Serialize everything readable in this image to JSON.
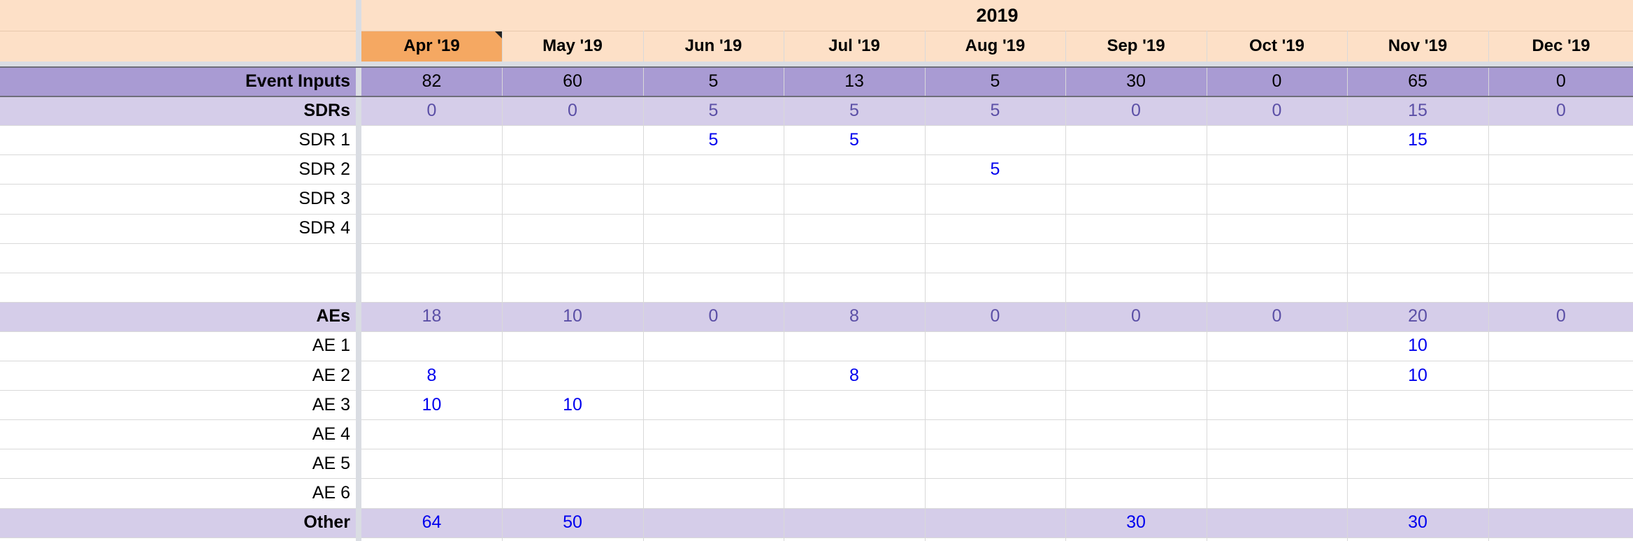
{
  "spreadsheet": {
    "year": "2019",
    "months": [
      "Apr '19",
      "May '19",
      "Jun '19",
      "Jul '19",
      "Aug '19",
      "Sep '19",
      "Oct '19",
      "Nov '19",
      "Dec '19"
    ],
    "selected_month_index": 0,
    "rows": [
      {
        "label": "Event Inputs",
        "kind": "event",
        "values": [
          "82",
          "60",
          "5",
          "13",
          "5",
          "30",
          "0",
          "65",
          "0"
        ]
      },
      {
        "label": "SDRs",
        "kind": "subtotal",
        "values": [
          "0",
          "0",
          "5",
          "5",
          "5",
          "0",
          "0",
          "15",
          "0"
        ]
      },
      {
        "label": "SDR 1",
        "kind": "input",
        "values": [
          "",
          "",
          "5",
          "5",
          "",
          "",
          "",
          "15",
          ""
        ]
      },
      {
        "label": "SDR 2",
        "kind": "input",
        "values": [
          "",
          "",
          "",
          "",
          "5",
          "",
          "",
          "",
          ""
        ]
      },
      {
        "label": "SDR 3",
        "kind": "input",
        "values": [
          "",
          "",
          "",
          "",
          "",
          "",
          "",
          "",
          ""
        ]
      },
      {
        "label": "SDR 4",
        "kind": "input",
        "values": [
          "",
          "",
          "",
          "",
          "",
          "",
          "",
          "",
          ""
        ]
      },
      {
        "label": "",
        "kind": "input",
        "values": [
          "",
          "",
          "",
          "",
          "",
          "",
          "",
          "",
          ""
        ]
      },
      {
        "label": "",
        "kind": "input",
        "values": [
          "",
          "",
          "",
          "",
          "",
          "",
          "",
          "",
          ""
        ]
      },
      {
        "label": "AEs",
        "kind": "subtotal",
        "values": [
          "18",
          "10",
          "0",
          "8",
          "0",
          "0",
          "0",
          "20",
          "0"
        ]
      },
      {
        "label": "AE 1",
        "kind": "input",
        "values": [
          "",
          "",
          "",
          "",
          "",
          "",
          "",
          "10",
          ""
        ]
      },
      {
        "label": "AE 2",
        "kind": "input",
        "values": [
          "8",
          "",
          "",
          "8",
          "",
          "",
          "",
          "10",
          ""
        ]
      },
      {
        "label": "AE 3",
        "kind": "input",
        "values": [
          "10",
          "10",
          "",
          "",
          "",
          "",
          "",
          "",
          ""
        ]
      },
      {
        "label": "AE 4",
        "kind": "input",
        "values": [
          "",
          "",
          "",
          "",
          "",
          "",
          "",
          "",
          ""
        ]
      },
      {
        "label": "AE 5",
        "kind": "input",
        "values": [
          "",
          "",
          "",
          "",
          "",
          "",
          "",
          "",
          ""
        ]
      },
      {
        "label": "AE 6",
        "kind": "input",
        "values": [
          "",
          "",
          "",
          "",
          "",
          "",
          "",
          "",
          ""
        ]
      },
      {
        "label": "Other",
        "kind": "other",
        "values": [
          "64",
          "50",
          "",
          "",
          "",
          "30",
          "",
          "30",
          ""
        ]
      }
    ]
  },
  "colors": {
    "header_bg": "#fde0c7",
    "selected_header_bg": "#f5a862",
    "event_row_bg": "#a99bd3",
    "subtotal_row_bg": "#d5cde9",
    "subtotal_text": "#5b4fa6",
    "input_text": "#0000ee",
    "label_text": "#000000"
  }
}
